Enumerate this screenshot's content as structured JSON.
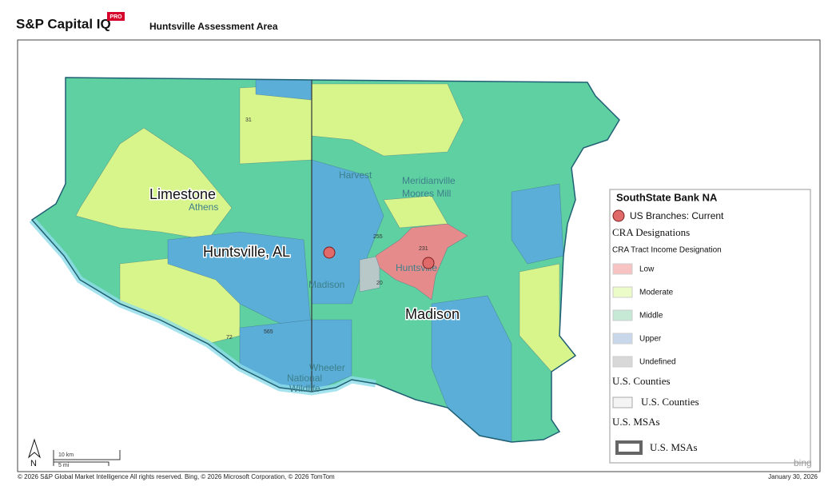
{
  "header": {
    "brand": "S&P Capital IQ",
    "badge": "PRO",
    "title": "Huntsville Assessment Area"
  },
  "map": {
    "county_labels": [
      "Limestone",
      "Huntsville, AL",
      "Madison"
    ],
    "places": [
      "Harvest",
      "Meridianville",
      "Moores Mill",
      "Athens",
      "Madison",
      "Huntsville",
      "Wheeler",
      "National",
      "Wildlife"
    ],
    "roads": [
      "31",
      "255",
      "231",
      "20",
      "565",
      "72"
    ]
  },
  "legend": {
    "title": "SouthState Bank NA",
    "branches": "US Branches: Current",
    "cra_heading": "CRA Designations",
    "cra_subheading": "CRA Tract Income Designation",
    "cra_items": [
      "Low",
      "Moderate",
      "Middle",
      "Upper",
      "Undefined"
    ],
    "counties_heading": "U.S. Counties",
    "counties_item": "U.S. Counties",
    "msas_heading": "U.S. MSAs",
    "msas_item": "U.S. MSAs"
  },
  "scale": {
    "north": "N",
    "km": "10 km",
    "mi": "5 mi"
  },
  "footer": {
    "copyright": "© 2026 S&P Global Market Intelligence All rights reserved. Bing, © 2026 Microsoft Corporation, © 2026 TomTom",
    "date": "January 30, 2026",
    "bing": "bing"
  }
}
